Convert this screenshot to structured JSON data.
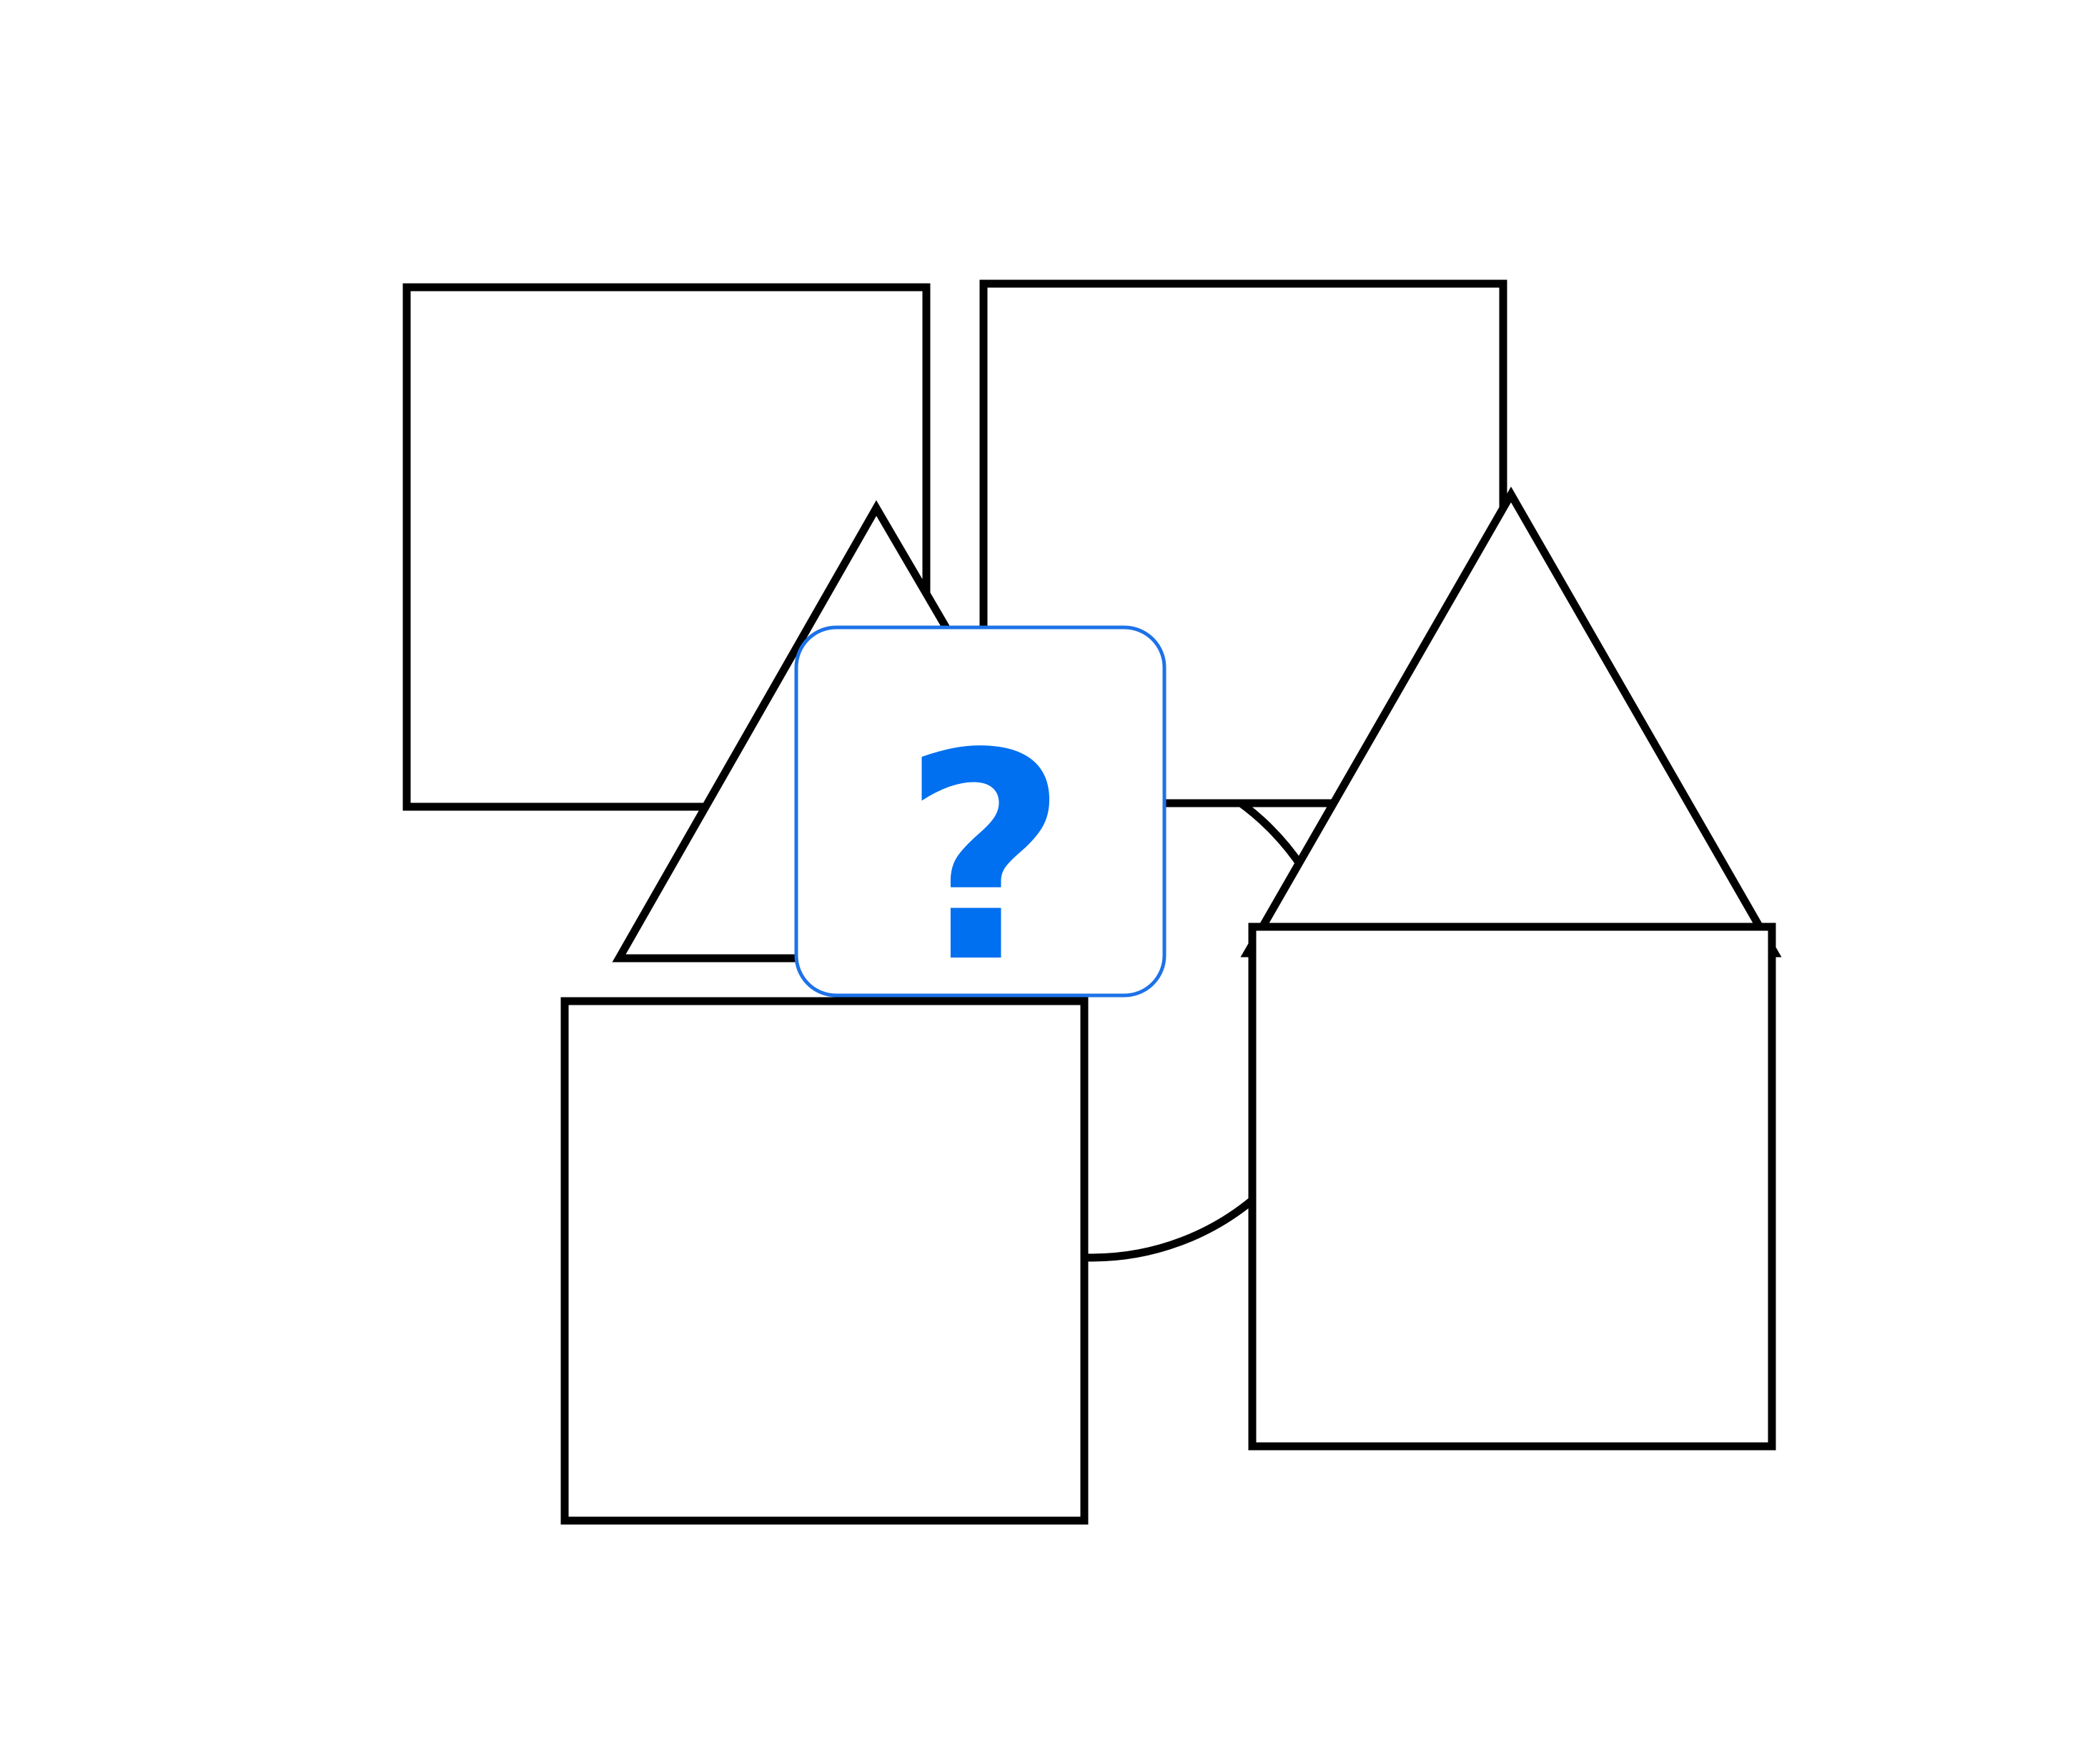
{
  "diagram": {
    "description_free": true,
    "placeholder": {
      "icon": "question-mark-icon",
      "glyph": "?",
      "color": "#006FF0",
      "border_color": "#1D72E8"
    },
    "shapes": [
      {
        "id": "square-top-left",
        "kind": "square"
      },
      {
        "id": "square-top-right",
        "kind": "square"
      },
      {
        "id": "triangle-left",
        "kind": "triangle"
      },
      {
        "id": "triangle-right",
        "kind": "triangle"
      },
      {
        "id": "square-bottom-left",
        "kind": "square"
      },
      {
        "id": "square-bottom-right",
        "kind": "square"
      },
      {
        "id": "circle-center",
        "kind": "circle"
      }
    ],
    "stroke_color": "#000000",
    "background_color": "#FFFFFF"
  }
}
